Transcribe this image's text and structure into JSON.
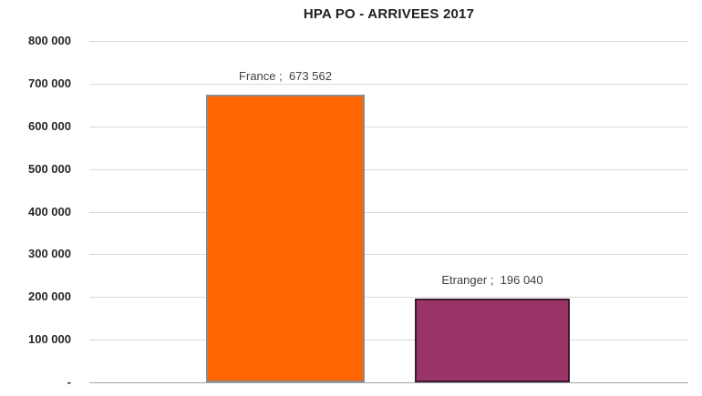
{
  "chart_data": {
    "type": "bar",
    "title": "HPA PO - ARRIVEES 2017",
    "categories": [
      "France",
      "Etranger"
    ],
    "values": [
      673562,
      196040
    ],
    "data_labels": [
      "France ;  673 562",
      "Etranger ;  196 040"
    ],
    "ylim": [
      0,
      800000
    ],
    "ytick_step": 100000,
    "ytick_labels": [
      "-",
      "100 000",
      "200 000",
      "300 000",
      "400 000",
      "500 000",
      "600 000",
      "700 000",
      "800 000"
    ],
    "grid": true,
    "legend_position": "none",
    "series_colors": [
      {
        "fill": "#FF6600",
        "border": "#8C8C8C"
      },
      {
        "fill": "#9A3467",
        "border": "#3A1A31"
      }
    ]
  },
  "colors": {
    "background": "#FFFFFF",
    "gridline": "#D9D9D9",
    "axis_line": "#A6A6A6",
    "title_text": "#1F1F1F",
    "tick_text": "#262626",
    "label_text": "#3F3F3F"
  }
}
